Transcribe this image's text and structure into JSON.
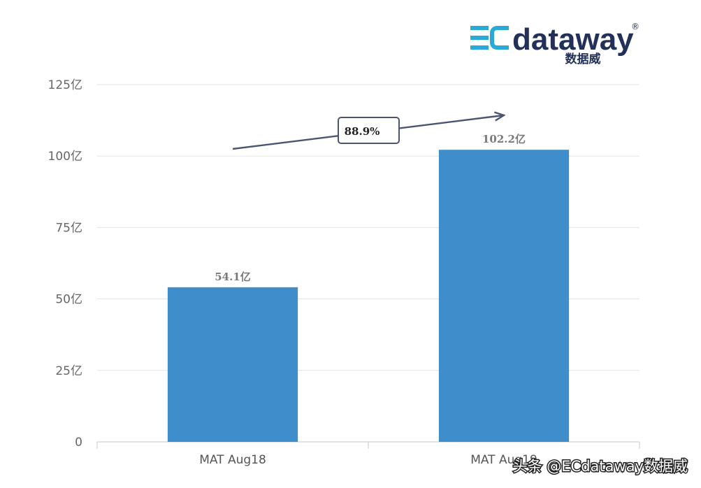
{
  "chart_data": {
    "type": "bar",
    "categories": [
      "MAT Aug18",
      "MAT Aug19"
    ],
    "values": [
      54.1,
      102.2
    ],
    "data_labels": [
      "54.1亿",
      "102.2亿"
    ],
    "title": "",
    "xlabel": "",
    "ylabel": "",
    "ylim": [
      0,
      125
    ],
    "yticks": [
      0,
      25,
      50,
      75,
      100,
      125
    ],
    "ytick_labels": [
      "0",
      "25亿",
      "50亿",
      "75亿",
      "100亿",
      "125亿"
    ],
    "grid": true,
    "bar_color": "#3f8ecb",
    "growth_annotation": "88.9%"
  },
  "logo": {
    "word_prefix": "EC",
    "word_suffix": "dataway",
    "cn_text": "数据威",
    "registered": "®",
    "accent_color": "#29a9d8",
    "text_color": "#22305a"
  },
  "watermark": {
    "text": "头条 @ECdataway数据威"
  }
}
